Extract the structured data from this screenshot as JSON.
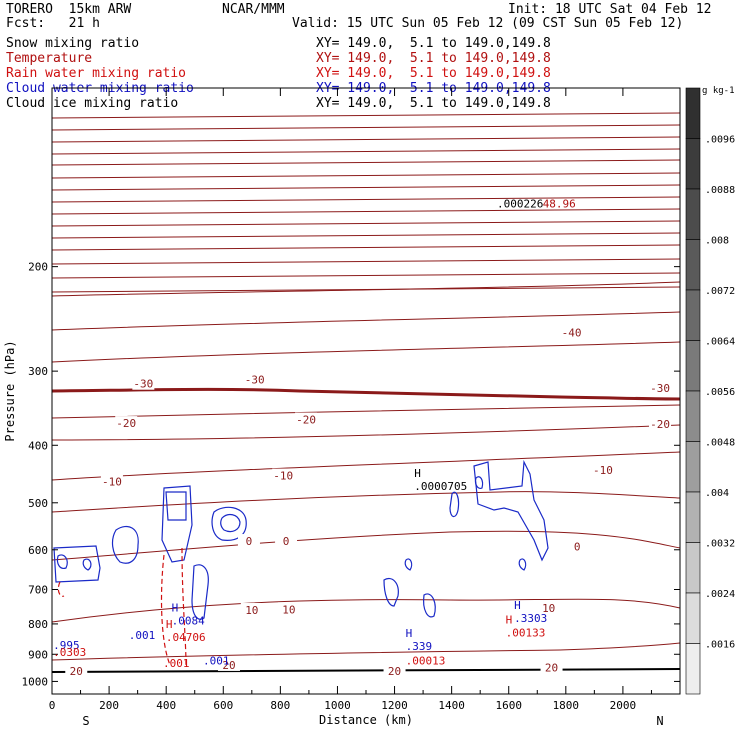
{
  "header": {
    "model": "TORERO  15km ARW",
    "org": "NCAR/MMM",
    "init": "Init: 18 UTC Sat 04 Feb 12",
    "fcst": "Fcst:   21 h",
    "valid": "Valid: 15 UTC Sun 05 Feb 12 (09 CST Sun 05 Feb 12)"
  },
  "fields": [
    {
      "name": "Snow mixing ratio",
      "xy": "XY= 149.0,  5.1 to 149.0,149.8",
      "color": "#000000"
    },
    {
      "name": "Temperature",
      "xy": "XY= 149.0,  5.1 to 149.0,149.8",
      "color": "#b01010"
    },
    {
      "name": "Rain water mixing ratio",
      "xy": "XY= 149.0,  5.1 to 149.0,149.8",
      "color": "#d01010"
    },
    {
      "name": "Cloud water mixing ratio",
      "xy": "XY= 149.0,  5.1 to 149.0,149.8",
      "color": "#1010c0"
    },
    {
      "name": "Cloud ice mixing ratio",
      "xy": "XY= 149.0,  5.1 to 149.0,149.8",
      "color": "#000000"
    }
  ],
  "colorbar": {
    "unit": "g kg-1",
    "labels": [
      ".0096",
      ".0088",
      ".008",
      ".0072",
      ".0064",
      ".0056",
      ".0048",
      ".004",
      ".0032",
      ".0024",
      ".0016"
    ],
    "colors": [
      "#303030",
      "#3c3c3c",
      "#4c4c4c",
      "#5a5a5a",
      "#6a6a6a",
      "#7a7a7a",
      "#8c8c8c",
      "#9e9e9e",
      "#b2b2b2",
      "#c8c8c8",
      "#dcdcdc",
      "#eeeeee"
    ]
  },
  "chart_data": {
    "type": "contour",
    "xlabel": "Distance (km)",
    "ylabel": "Pressure (hPa)",
    "xlim": [
      0,
      2200
    ],
    "ylim": [
      1050,
      100
    ],
    "yscale": "log",
    "x_ticks": [
      0,
      200,
      400,
      600,
      800,
      1000,
      1200,
      1400,
      1600,
      1800,
      2000
    ],
    "y_ticks": [
      200,
      300,
      400,
      500,
      600,
      700,
      800,
      900,
      1000
    ],
    "x_end_labels": {
      "left": "S",
      "right": "N"
    },
    "temperature_contour_labels": [
      {
        "text": "-40",
        "x": 1820,
        "p": 258
      },
      {
        "text": "-30",
        "x": 320,
        "p": 315
      },
      {
        "text": "-30",
        "x": 710,
        "p": 310
      },
      {
        "text": "-30",
        "x": 2130,
        "p": 320
      },
      {
        "text": "-20",
        "x": 260,
        "p": 367
      },
      {
        "text": "-20",
        "x": 890,
        "p": 362
      },
      {
        "text": "-20",
        "x": 2130,
        "p": 368
      },
      {
        "text": "-10",
        "x": 210,
        "p": 460
      },
      {
        "text": "-10",
        "x": 810,
        "p": 450
      },
      {
        "text": "-10",
        "x": 1930,
        "p": 440
      },
      {
        "text": "0",
        "x": 690,
        "p": 580
      },
      {
        "text": "0",
        "x": 820,
        "p": 580
      },
      {
        "text": "0",
        "x": 1840,
        "p": 592
      },
      {
        "text": "10",
        "x": 700,
        "p": 758
      },
      {
        "text": "10",
        "x": 830,
        "p": 756
      },
      {
        "text": "10",
        "x": 1740,
        "p": 752
      },
      {
        "text": "20",
        "x": 620,
        "p": 938
      },
      {
        "text": "20",
        "x": 1200,
        "p": 960
      },
      {
        "text": "20",
        "x": 1750,
        "p": 948
      },
      {
        "text": "20",
        "x": 85,
        "p": 960
      }
    ],
    "extrema_labels": [
      {
        "mark": "H",
        "value": ".0000705",
        "x": 1290,
        "p": 470,
        "color": "#000000"
      },
      {
        "mark": "",
        "value": ".000226",
        "x": 1580,
        "p": 157,
        "color": "#000000"
      },
      {
        "mark": "",
        "value": "48.96",
        "x": 1740,
        "p": 157,
        "color": "#b01010"
      },
      {
        "mark": "",
        "value": ".995",
        "x": 25,
        "p": 872,
        "color": "#1010c0"
      },
      {
        "mark": "",
        "value": ".0303",
        "x": 25,
        "p": 895,
        "color": "#d01010"
      },
      {
        "mark": "",
        "value": ".001",
        "x": 290,
        "p": 838,
        "color": "#1010c0"
      },
      {
        "mark": "H",
        "value": ".0084",
        "x": 440,
        "p": 792,
        "color": "#1010c0"
      },
      {
        "mark": "H",
        "value": ".04706",
        "x": 420,
        "p": 845,
        "color": "#d01010"
      },
      {
        "mark": "",
        "value": ".001",
        "x": 410,
        "p": 935,
        "color": "#d01010"
      },
      {
        "mark": "",
        "value": ".001",
        "x": 550,
        "p": 925,
        "color": "#1010c0"
      },
      {
        "mark": "H",
        "value": ".339",
        "x": 1260,
        "p": 875,
        "color": "#1010c0"
      },
      {
        "mark": "",
        "value": ".00013",
        "x": 1260,
        "p": 925,
        "color": "#d01010"
      },
      {
        "mark": "H",
        "value": ".3303",
        "x": 1640,
        "p": 785,
        "color": "#1010c0"
      },
      {
        "mark": "H",
        "value": ".00133",
        "x": 1610,
        "p": 830,
        "color": "#d01010"
      }
    ]
  }
}
